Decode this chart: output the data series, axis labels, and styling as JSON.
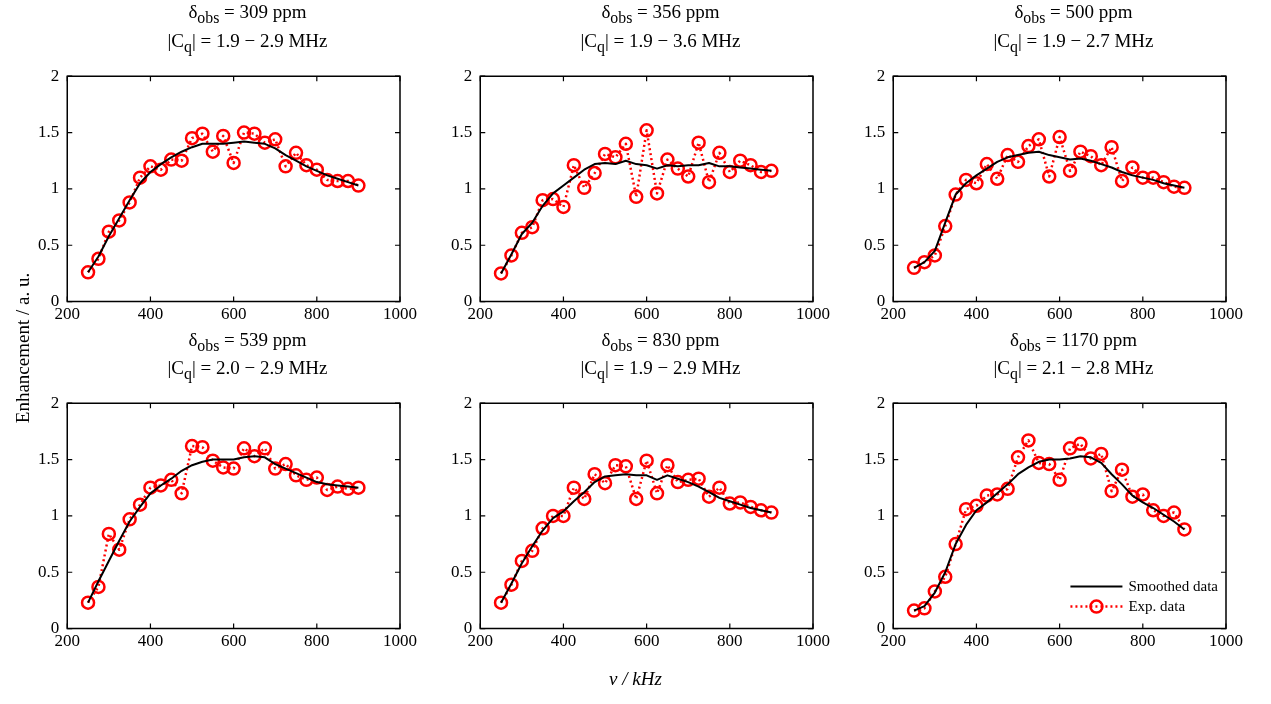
{
  "chart_data": [
    {
      "type": "line",
      "title": "δ$_{obs}$ = 309 ppm",
      "subtitle": "|C$_{q}$| = 1.9 − 2.9 MHz",
      "x": [
        250,
        275,
        300,
        325,
        350,
        375,
        400,
        425,
        450,
        475,
        500,
        525,
        550,
        575,
        600,
        625,
        650,
        675,
        700,
        725,
        750,
        775,
        800,
        825,
        850,
        875,
        900
      ],
      "xlim": [
        200,
        1000
      ],
      "xticks": [
        200,
        400,
        600,
        800,
        1000
      ],
      "ylim": [
        0,
        2
      ],
      "yticks": [
        0,
        0.5,
        1,
        1.5,
        2
      ],
      "series": [
        {
          "color": "#000000",
          "line_style": "solid",
          "marker": "none",
          "values": [
            0.26,
            0.4,
            0.58,
            0.74,
            0.9,
            1.05,
            1.15,
            1.22,
            1.28,
            1.33,
            1.37,
            1.4,
            1.4,
            1.4,
            1.41,
            1.42,
            1.41,
            1.4,
            1.36,
            1.3,
            1.25,
            1.2,
            1.16,
            1.12,
            1.09,
            1.06,
            1.03
          ]
        },
        {
          "color": "#ff0000",
          "line_style": "dotted",
          "marker": "circle",
          "values": [
            0.26,
            0.38,
            0.62,
            0.72,
            0.88,
            1.1,
            1.2,
            1.17,
            1.26,
            1.25,
            1.45,
            1.49,
            1.33,
            1.47,
            1.23,
            1.5,
            1.49,
            1.41,
            1.44,
            1.2,
            1.32,
            1.21,
            1.17,
            1.08,
            1.07,
            1.07,
            1.03
          ]
        }
      ]
    },
    {
      "type": "line",
      "title": "δ$_{obs}$ = 356 ppm",
      "subtitle": "|C$_{q}$| = 1.9 − 3.6 MHz",
      "x": [
        250,
        275,
        300,
        325,
        350,
        375,
        400,
        425,
        450,
        475,
        500,
        525,
        550,
        575,
        600,
        625,
        650,
        675,
        700,
        725,
        750,
        775,
        800,
        825,
        850,
        875,
        900
      ],
      "xlim": [
        200,
        1000
      ],
      "xticks": [
        200,
        400,
        600,
        800,
        1000
      ],
      "ylim": [
        0,
        2
      ],
      "yticks": [
        0,
        0.5,
        1,
        1.5,
        2
      ],
      "series": [
        {
          "color": "#000000",
          "line_style": "solid",
          "marker": "none",
          "values": [
            0.25,
            0.42,
            0.6,
            0.7,
            0.85,
            0.96,
            1.03,
            1.1,
            1.17,
            1.22,
            1.23,
            1.22,
            1.25,
            1.22,
            1.21,
            1.18,
            1.21,
            1.2,
            1.21,
            1.21,
            1.23,
            1.2,
            1.2,
            1.19,
            1.18,
            1.17,
            1.16
          ]
        },
        {
          "color": "#ff0000",
          "line_style": "dotted",
          "marker": "circle",
          "values": [
            0.25,
            0.41,
            0.61,
            0.66,
            0.9,
            0.91,
            0.84,
            1.21,
            1.01,
            1.14,
            1.31,
            1.28,
            1.4,
            0.93,
            1.52,
            0.96,
            1.26,
            1.18,
            1.11,
            1.41,
            1.06,
            1.32,
            1.15,
            1.25,
            1.21,
            1.15,
            1.16
          ]
        }
      ]
    },
    {
      "type": "line",
      "title": "δ$_{obs}$ = 500 ppm",
      "subtitle": "|C$_{q}$| = 1.9 − 2.7 MHz",
      "x": [
        250,
        275,
        300,
        325,
        350,
        375,
        400,
        425,
        450,
        475,
        500,
        525,
        550,
        575,
        600,
        625,
        650,
        675,
        700,
        725,
        750,
        775,
        800,
        825,
        850,
        875,
        900
      ],
      "xlim": [
        200,
        1000
      ],
      "xticks": [
        200,
        400,
        600,
        800,
        1000
      ],
      "ylim": [
        0,
        2
      ],
      "yticks": [
        0,
        0.5,
        1,
        1.5,
        2
      ],
      "series": [
        {
          "color": "#000000",
          "line_style": "solid",
          "marker": "none",
          "values": [
            0.3,
            0.35,
            0.45,
            0.7,
            0.95,
            1.05,
            1.12,
            1.18,
            1.24,
            1.28,
            1.3,
            1.32,
            1.33,
            1.3,
            1.28,
            1.26,
            1.27,
            1.25,
            1.22,
            1.19,
            1.15,
            1.12,
            1.1,
            1.08,
            1.05,
            1.03,
            1.01
          ]
        },
        {
          "color": "#ff0000",
          "line_style": "dotted",
          "marker": "circle",
          "values": [
            0.3,
            0.35,
            0.41,
            0.67,
            0.95,
            1.08,
            1.05,
            1.22,
            1.09,
            1.3,
            1.24,
            1.38,
            1.44,
            1.11,
            1.46,
            1.16,
            1.33,
            1.29,
            1.21,
            1.37,
            1.07,
            1.19,
            1.1,
            1.1,
            1.06,
            1.02,
            1.01
          ]
        }
      ]
    },
    {
      "type": "line",
      "title": "δ$_{obs}$ = 539 ppm",
      "subtitle": "|C$_{q}$| = 2.0 − 2.9 MHz",
      "ylabel": "Enhancement / a. u.",
      "x": [
        250,
        275,
        300,
        325,
        350,
        375,
        400,
        425,
        450,
        475,
        500,
        525,
        550,
        575,
        600,
        625,
        650,
        675,
        700,
        725,
        750,
        775,
        800,
        825,
        850,
        875,
        900
      ],
      "xlim": [
        200,
        1000
      ],
      "xticks": [
        200,
        400,
        600,
        800,
        1000
      ],
      "ylim": [
        0,
        2
      ],
      "yticks": [
        0,
        0.5,
        1,
        1.5,
        2
      ],
      "series": [
        {
          "color": "#000000",
          "line_style": "solid",
          "marker": "none",
          "values": [
            0.23,
            0.42,
            0.6,
            0.78,
            0.95,
            1.08,
            1.2,
            1.27,
            1.33,
            1.4,
            1.45,
            1.48,
            1.5,
            1.5,
            1.5,
            1.52,
            1.53,
            1.52,
            1.46,
            1.42,
            1.38,
            1.34,
            1.3,
            1.28,
            1.27,
            1.26,
            1.25
          ]
        },
        {
          "color": "#ff0000",
          "line_style": "dotted",
          "marker": "circle",
          "values": [
            0.23,
            0.37,
            0.84,
            0.7,
            0.97,
            1.1,
            1.25,
            1.27,
            1.32,
            1.2,
            1.62,
            1.61,
            1.49,
            1.43,
            1.42,
            1.6,
            1.53,
            1.6,
            1.42,
            1.46,
            1.36,
            1.32,
            1.34,
            1.23,
            1.26,
            1.24,
            1.25
          ]
        }
      ]
    },
    {
      "type": "line",
      "title": "δ$_{obs}$ = 830 ppm",
      "subtitle": "|C$_{q}$| = 1.9 − 2.9 MHz",
      "xlabel": "ν / kHz",
      "x": [
        250,
        275,
        300,
        325,
        350,
        375,
        400,
        425,
        450,
        475,
        500,
        525,
        550,
        575,
        600,
        625,
        650,
        675,
        700,
        725,
        750,
        775,
        800,
        825,
        850,
        875,
        900
      ],
      "xlim": [
        200,
        1000
      ],
      "xticks": [
        200,
        400,
        600,
        800,
        1000
      ],
      "ylim": [
        0,
        2
      ],
      "yticks": [
        0,
        0.5,
        1,
        1.5,
        2
      ],
      "series": [
        {
          "color": "#000000",
          "line_style": "solid",
          "marker": "none",
          "values": [
            0.23,
            0.4,
            0.58,
            0.73,
            0.87,
            0.98,
            1.04,
            1.13,
            1.21,
            1.3,
            1.35,
            1.36,
            1.37,
            1.36,
            1.36,
            1.32,
            1.36,
            1.33,
            1.3,
            1.26,
            1.21,
            1.16,
            1.13,
            1.1,
            1.07,
            1.05,
            1.03
          ]
        },
        {
          "color": "#ff0000",
          "line_style": "dotted",
          "marker": "circle",
          "values": [
            0.23,
            0.39,
            0.6,
            0.69,
            0.89,
            1.0,
            1.0,
            1.25,
            1.15,
            1.37,
            1.29,
            1.45,
            1.44,
            1.15,
            1.49,
            1.2,
            1.45,
            1.3,
            1.32,
            1.33,
            1.17,
            1.25,
            1.11,
            1.12,
            1.08,
            1.05,
            1.03
          ]
        }
      ]
    },
    {
      "type": "line",
      "title": "δ$_{obs}$ = 1170 ppm",
      "subtitle": "|C$_{q}$| = 2.1 − 2.8 MHz",
      "legend": "bottom right",
      "x": [
        250,
        275,
        300,
        325,
        350,
        375,
        400,
        425,
        450,
        475,
        500,
        525,
        550,
        575,
        600,
        625,
        650,
        675,
        700,
        725,
        750,
        775,
        800,
        825,
        850,
        875,
        900
      ],
      "xlim": [
        200,
        1000
      ],
      "xticks": [
        200,
        400,
        600,
        800,
        1000
      ],
      "ylim": [
        0,
        2
      ],
      "yticks": [
        0,
        0.5,
        1,
        1.5,
        2
      ],
      "series": [
        {
          "name": "Smoothed data",
          "color": "#000000",
          "line_style": "solid",
          "marker": "none",
          "values": [
            0.16,
            0.2,
            0.32,
            0.5,
            0.75,
            0.92,
            1.05,
            1.12,
            1.2,
            1.28,
            1.37,
            1.43,
            1.48,
            1.5,
            1.5,
            1.51,
            1.53,
            1.52,
            1.47,
            1.37,
            1.28,
            1.18,
            1.12,
            1.07,
            1.01,
            0.95,
            0.88
          ]
        },
        {
          "name": "Exp. data",
          "color": "#ff0000",
          "line_style": "dotted",
          "marker": "circle",
          "values": [
            0.16,
            0.18,
            0.33,
            0.46,
            0.75,
            1.06,
            1.09,
            1.18,
            1.19,
            1.24,
            1.52,
            1.67,
            1.47,
            1.46,
            1.32,
            1.6,
            1.64,
            1.51,
            1.55,
            1.22,
            1.41,
            1.17,
            1.19,
            1.05,
            1.0,
            1.03,
            0.88
          ]
        }
      ]
    }
  ]
}
